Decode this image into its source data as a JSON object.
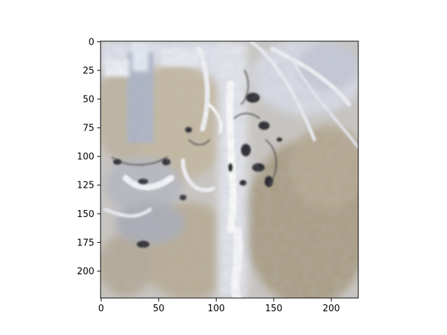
{
  "image": {
    "description_colors": {
      "frame": "#000000",
      "background": "#ffffff",
      "tone_light": "#e8eaf0",
      "tone_beige": "#b7ab95",
      "tone_blue_gray": "#9fa8bf",
      "tone_dark": "#2a2a2a"
    }
  },
  "axes": {
    "x_ticks": [
      "0",
      "50",
      "100",
      "150",
      "200"
    ],
    "y_ticks": [
      "0",
      "25",
      "50",
      "75",
      "100",
      "125",
      "150",
      "175",
      "200"
    ]
  }
}
